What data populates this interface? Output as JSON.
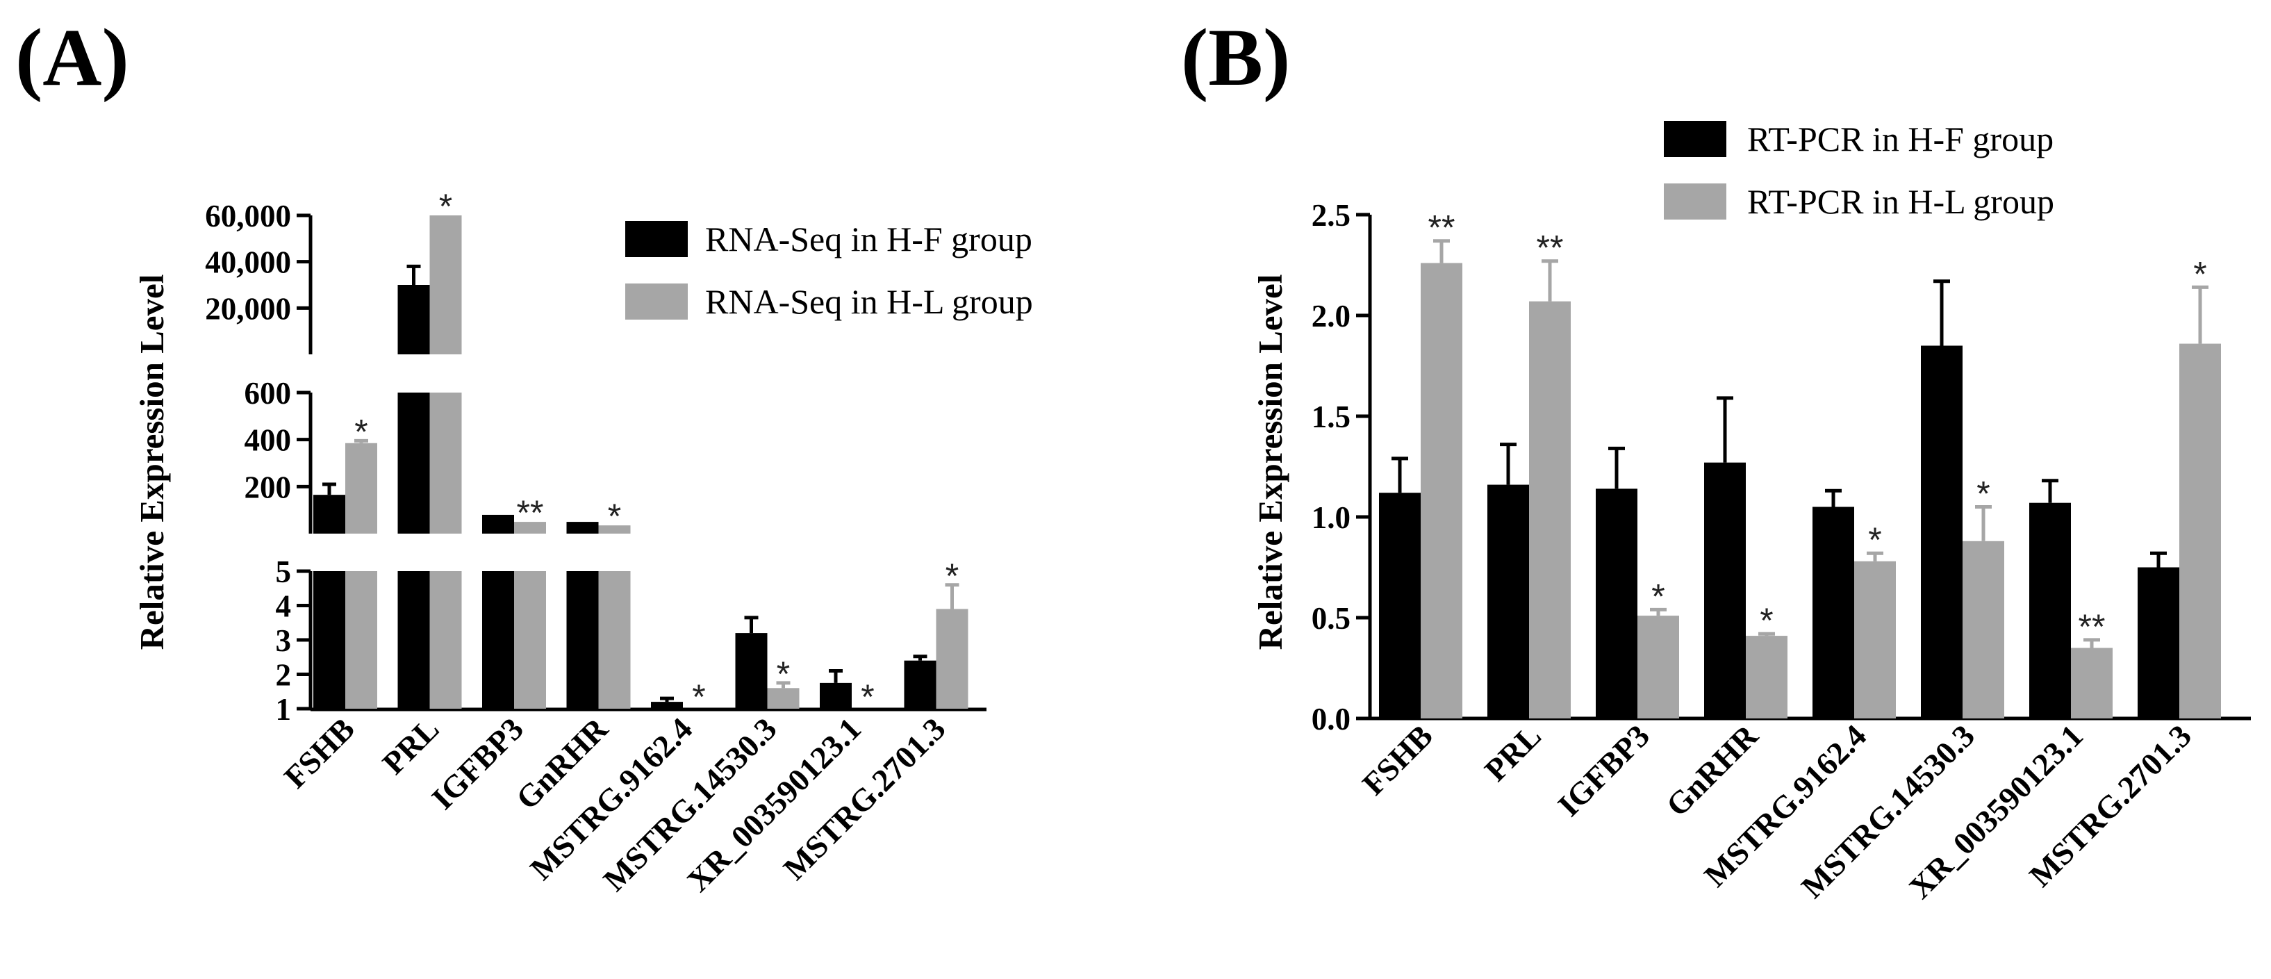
{
  "colors": {
    "black_series": "#000000",
    "gray_series": "#a6a6a6"
  },
  "chart_data": [
    {
      "panel": "(A)",
      "type": "bar",
      "ylabel": "Relative Expression Level",
      "categories": [
        "FSHB",
        "PRL",
        "IGFBP3",
        "GnRHR",
        "MSTRG.9162.4",
        "MSTRG.14530.3",
        "XR_003590123.1",
        "MSTRG.2701.3"
      ],
      "series": [
        {
          "name": "RNA-Seq in H-F group",
          "color": "#000000",
          "values": [
            165,
            30000,
            80,
            50,
            1.2,
            3.2,
            1.75,
            2.4
          ],
          "errors": [
            45,
            8000,
            0,
            0,
            0.1,
            0.45,
            0.35,
            0.12
          ]
        },
        {
          "name": "RNA-Seq in H-L group",
          "color": "#a6a6a6",
          "values": [
            385,
            60000,
            50,
            35,
            0.9,
            1.6,
            0.8,
            3.9
          ],
          "errors": [
            10,
            0,
            0,
            0,
            0,
            0.15,
            0,
            0.7
          ]
        }
      ],
      "significance": [
        "*",
        "*",
        "**",
        "*",
        "*",
        "*",
        "*",
        "*"
      ],
      "axis_segments": [
        {
          "range": [
            1,
            5
          ],
          "ticks": [
            "1",
            "2",
            "3",
            "4",
            "5"
          ]
        },
        {
          "range": [
            5,
            600
          ],
          "ticks": [
            "200",
            "400",
            "600"
          ]
        },
        {
          "range": [
            600,
            60000
          ],
          "ticks": [
            "20,000",
            "40,000",
            "60,000"
          ]
        }
      ]
    },
    {
      "panel": "(B)",
      "type": "bar",
      "ylabel": "Relative Expression Level",
      "ylim": [
        0,
        2.5
      ],
      "yticks": [
        "0.0",
        "0.5",
        "1.0",
        "1.5",
        "2.0",
        "2.5"
      ],
      "categories": [
        "FSHB",
        "PRL",
        "IGFBP3",
        "GnRHR",
        "MSTRG.9162.4",
        "MSTRG.14530.3",
        "XR_003590123.1",
        "MSTRG.2701.3"
      ],
      "series": [
        {
          "name": "RT-PCR in H-F group",
          "color": "#000000",
          "values": [
            1.12,
            1.16,
            1.14,
            1.27,
            1.05,
            1.85,
            1.07,
            0.75
          ],
          "errors": [
            0.17,
            0.2,
            0.2,
            0.32,
            0.08,
            0.32,
            0.11,
            0.07
          ]
        },
        {
          "name": "RT-PCR in H-L group",
          "color": "#a6a6a6",
          "values": [
            2.26,
            2.07,
            0.51,
            0.41,
            0.78,
            0.88,
            0.35,
            1.86
          ],
          "errors": [
            0.11,
            0.2,
            0.03,
            0.01,
            0.04,
            0.17,
            0.04,
            0.28
          ]
        }
      ],
      "significance": [
        "**",
        "**",
        "*",
        "*",
        "*",
        "*",
        "**",
        "*"
      ]
    }
  ]
}
